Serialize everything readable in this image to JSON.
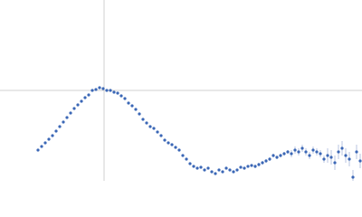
{
  "chart_data": {
    "type": "scatter",
    "color": "#3b67b6",
    "error_color": "#b8c6e0",
    "xlim": [
      0,
      400
    ],
    "ylim": [
      0,
      200
    ],
    "crosshair": {
      "x": 115,
      "y": 100
    },
    "crosshair_color": "#d0d0d0",
    "x": [
      42,
      46,
      50,
      54,
      58,
      62,
      66,
      70,
      74,
      78,
      82,
      86,
      90,
      94,
      98,
      102,
      106,
      110,
      114,
      118,
      122,
      126,
      130,
      134,
      138,
      142,
      146,
      150,
      154,
      158,
      162,
      166,
      170,
      174,
      178,
      182,
      186,
      190,
      194,
      198,
      202,
      206,
      210,
      214,
      218,
      222,
      226,
      230,
      234,
      238,
      242,
      246,
      250,
      254,
      258,
      262,
      266,
      270,
      274,
      278,
      282,
      286,
      290,
      294,
      298,
      302,
      306,
      310,
      314,
      318,
      322,
      326,
      330,
      334,
      338,
      342,
      346,
      350,
      354,
      358,
      362,
      366,
      370,
      374,
      378,
      382,
      386,
      390,
      394,
      398
    ],
    "y": [
      34,
      38,
      42,
      46,
      50,
      55,
      60,
      65,
      70,
      75,
      80,
      84,
      88,
      92,
      95,
      100,
      101,
      103,
      102,
      100,
      100,
      98,
      97,
      94,
      91,
      86,
      83,
      79,
      74,
      68,
      64,
      60,
      58,
      54,
      50,
      45,
      42,
      40,
      37,
      34,
      28,
      24,
      19,
      16,
      14,
      15,
      12,
      14,
      10,
      8,
      12,
      10,
      14,
      12,
      10,
      12,
      15,
      14,
      16,
      17,
      16,
      18,
      20,
      22,
      24,
      28,
      26,
      28,
      30,
      32,
      30,
      34,
      32,
      36,
      32,
      28,
      34,
      32,
      30,
      24,
      28,
      26,
      20,
      32,
      36,
      28,
      24,
      4,
      32,
      22
    ],
    "error": [
      0.5,
      0.5,
      0.5,
      0.5,
      0.5,
      0.5,
      0.5,
      0.5,
      0.5,
      0.5,
      0.5,
      0.5,
      0.5,
      0.5,
      0.5,
      0.5,
      0.5,
      0.5,
      0.5,
      0.5,
      0.5,
      0.5,
      0.5,
      0.5,
      0.5,
      0.5,
      0.5,
      0.5,
      0.5,
      0.5,
      0.5,
      0.5,
      0.5,
      0.5,
      0.5,
      0.5,
      0.5,
      0.5,
      0.5,
      0.5,
      1,
      1,
      1,
      1,
      1,
      1,
      1,
      1,
      1,
      1,
      1,
      1,
      1,
      1,
      1,
      1,
      1,
      1,
      1,
      1,
      2,
      2,
      2,
      2,
      2,
      2,
      2,
      2,
      2,
      2,
      4,
      4,
      4,
      4,
      4,
      4,
      4,
      4,
      4,
      4,
      8,
      8,
      8,
      8,
      8,
      8,
      8,
      8,
      8,
      8
    ]
  }
}
